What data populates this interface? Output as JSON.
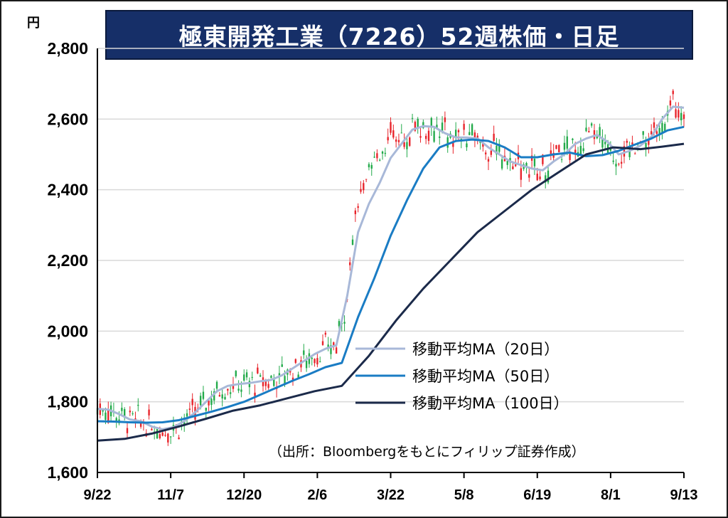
{
  "title": "極東開発工業（7226）52週株価・日足",
  "unit_label": "円",
  "source": "（出所：Bloombergをもとにフィリップ証券作成）",
  "colors": {
    "title_bg": "#162f68",
    "up_candle": "#e8232a",
    "down_candle": "#22aa4a",
    "ma20": "#a8b8d8",
    "ma50": "#1a7cc4",
    "ma100": "#1b2a4a",
    "grid": "#d9d9d9"
  },
  "chart_data": {
    "type": "candlestick",
    "title": "極東開発工業（7226）52週株価・日足",
    "ylabel": "円",
    "ylim": [
      1600,
      2800
    ],
    "yticks": [
      1600,
      1800,
      2000,
      2200,
      2400,
      2600,
      2800
    ],
    "ytick_labels": [
      "1,600",
      "1,800",
      "2,000",
      "2,200",
      "2,400",
      "2,600",
      "2,800"
    ],
    "xticks": [
      "9/22",
      "11/7",
      "12/20",
      "2/6",
      "3/22",
      "5/8",
      "6/19",
      "8/1",
      "9/13"
    ],
    "grid": true,
    "legend_position": "bottom-right",
    "series": [
      {
        "name": "移動平均MA（20日）",
        "color": "#a8b8d8",
        "points": [
          [
            0,
            1780
          ],
          [
            4,
            1778
          ],
          [
            8,
            1765
          ],
          [
            12,
            1750
          ],
          [
            16,
            1745
          ],
          [
            20,
            1730
          ],
          [
            24,
            1722
          ],
          [
            28,
            1728
          ],
          [
            32,
            1745
          ],
          [
            36,
            1770
          ],
          [
            40,
            1800
          ],
          [
            44,
            1830
          ],
          [
            48,
            1845
          ],
          [
            52,
            1850
          ],
          [
            56,
            1853
          ],
          [
            60,
            1858
          ],
          [
            64,
            1862
          ],
          [
            68,
            1875
          ],
          [
            72,
            1895
          ],
          [
            76,
            1915
          ],
          [
            80,
            1935
          ],
          [
            84,
            1950
          ],
          [
            88,
            1960
          ],
          [
            92,
            2100
          ],
          [
            96,
            2280
          ],
          [
            100,
            2360
          ],
          [
            104,
            2420
          ],
          [
            108,
            2490
          ],
          [
            112,
            2530
          ],
          [
            116,
            2570
          ],
          [
            120,
            2580
          ],
          [
            124,
            2578
          ],
          [
            128,
            2560
          ],
          [
            132,
            2548
          ],
          [
            136,
            2548
          ],
          [
            140,
            2545
          ],
          [
            144,
            2520
          ],
          [
            148,
            2500
          ],
          [
            152,
            2480
          ],
          [
            156,
            2470
          ],
          [
            160,
            2460
          ],
          [
            164,
            2455
          ],
          [
            168,
            2480
          ],
          [
            172,
            2500
          ],
          [
            176,
            2530
          ],
          [
            180,
            2545
          ],
          [
            184,
            2555
          ],
          [
            188,
            2535
          ],
          [
            192,
            2500
          ],
          [
            196,
            2510
          ],
          [
            200,
            2525
          ],
          [
            204,
            2550
          ],
          [
            208,
            2600
          ],
          [
            212,
            2635
          ],
          [
            216,
            2632
          ]
        ]
      },
      {
        "name": "移動平均MA（50日）",
        "color": "#1a7cc4",
        "points": [
          [
            0,
            1745
          ],
          [
            6,
            1744
          ],
          [
            12,
            1742
          ],
          [
            18,
            1741
          ],
          [
            24,
            1742
          ],
          [
            30,
            1748
          ],
          [
            36,
            1760
          ],
          [
            42,
            1772
          ],
          [
            48,
            1785
          ],
          [
            54,
            1800
          ],
          [
            60,
            1820
          ],
          [
            66,
            1840
          ],
          [
            72,
            1860
          ],
          [
            78,
            1878
          ],
          [
            84,
            1898
          ],
          [
            90,
            1910
          ],
          [
            96,
            2040
          ],
          [
            102,
            2150
          ],
          [
            108,
            2270
          ],
          [
            114,
            2370
          ],
          [
            120,
            2460
          ],
          [
            126,
            2520
          ],
          [
            132,
            2538
          ],
          [
            138,
            2542
          ],
          [
            144,
            2538
          ],
          [
            150,
            2520
          ],
          [
            156,
            2492
          ],
          [
            162,
            2492
          ],
          [
            168,
            2500
          ],
          [
            174,
            2505
          ],
          [
            180,
            2495
          ],
          [
            186,
            2498
          ],
          [
            192,
            2510
          ],
          [
            198,
            2528
          ],
          [
            204,
            2545
          ],
          [
            210,
            2568
          ],
          [
            216,
            2578
          ]
        ]
      },
      {
        "name": "移動平均MA（100日）",
        "color": "#1b2a4a",
        "points": [
          [
            0,
            1690
          ],
          [
            10,
            1695
          ],
          [
            20,
            1710
          ],
          [
            30,
            1730
          ],
          [
            40,
            1752
          ],
          [
            50,
            1775
          ],
          [
            60,
            1790
          ],
          [
            70,
            1810
          ],
          [
            80,
            1830
          ],
          [
            90,
            1845
          ],
          [
            100,
            1930
          ],
          [
            110,
            2030
          ],
          [
            120,
            2120
          ],
          [
            130,
            2200
          ],
          [
            140,
            2280
          ],
          [
            150,
            2340
          ],
          [
            160,
            2400
          ],
          [
            170,
            2450
          ],
          [
            180,
            2500
          ],
          [
            190,
            2520
          ],
          [
            200,
            2515
          ],
          [
            208,
            2522
          ],
          [
            216,
            2530
          ]
        ]
      }
    ]
  }
}
